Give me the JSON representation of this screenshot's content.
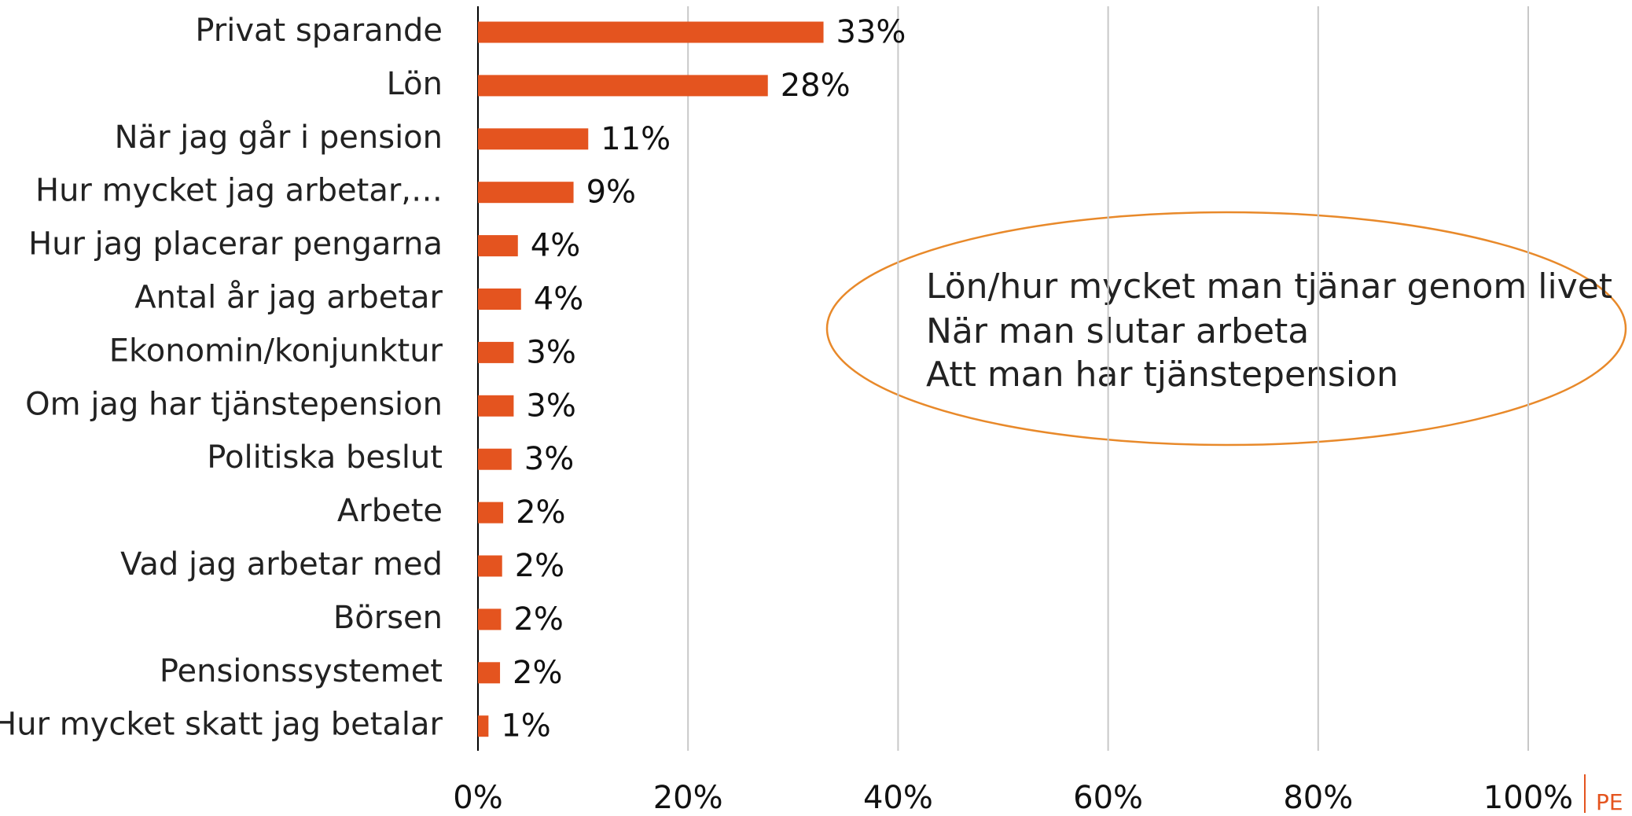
{
  "chart_data": {
    "type": "bar",
    "orientation": "horizontal",
    "categories": [
      "Privat sparande",
      "Lön",
      "När jag går i pension",
      "Hur mycket jag arbetar,…",
      "Hur jag placerar pengarna",
      "Antal år jag arbetar",
      "Ekonomin/konjunktur",
      "Om jag har tjänstepension",
      "Politiska beslut",
      "Arbete",
      "Vad jag arbetar med",
      "Börsen",
      "Pensionssystemet",
      "Hur mycket skatt jag betalar"
    ],
    "values": [
      32.9,
      27.6,
      10.5,
      9.1,
      3.8,
      4.1,
      3.4,
      3.4,
      3.2,
      2.4,
      2.3,
      2.2,
      2.1,
      1.0
    ],
    "value_labels": [
      "33%",
      "28%",
      "11%",
      "9%",
      "4%",
      "4%",
      "3%",
      "3%",
      "3%",
      "2%",
      "2%",
      "2%",
      "2%",
      "1%"
    ],
    "color": "#e4541f",
    "xlim": [
      0,
      100
    ],
    "xticks": [
      {
        "value": 0,
        "label": "0%"
      },
      {
        "value": 20,
        "label": "20%"
      },
      {
        "value": 40,
        "label": "40%"
      },
      {
        "value": 60,
        "label": "60%"
      },
      {
        "value": 80,
        "label": "80%"
      },
      {
        "value": 100,
        "label": "100%"
      }
    ],
    "grid": true,
    "annotation": [
      "Lön/hur mycket man tjänar genom livet",
      "När man slutar arbeta",
      "Att man har tjänstepension"
    ],
    "logo_text": "PE"
  }
}
